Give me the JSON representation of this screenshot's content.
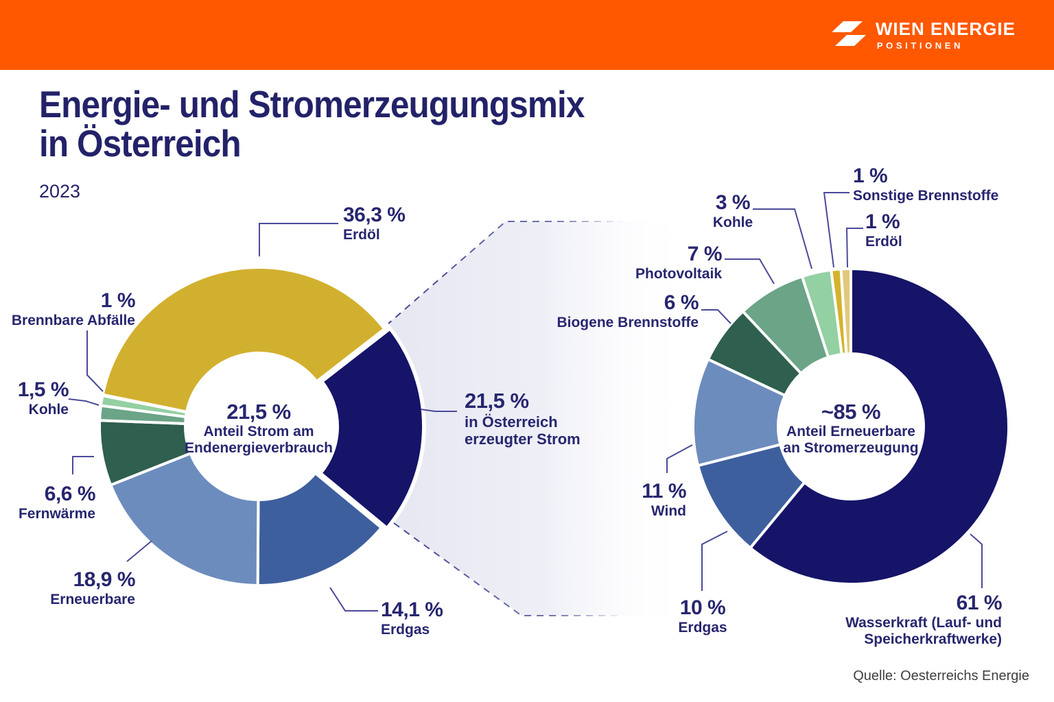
{
  "header": {
    "logo": {
      "icon": "wien-energie-flash-icon",
      "title": "WIEN ENERGIE",
      "subtitle": "POSITIONEN"
    },
    "background_color": "#FF5800"
  },
  "title": {
    "line1": "Energie- und Stromerzeugungsmix",
    "line2": "in Österreich",
    "year": "2023"
  },
  "source": "Quelle: Oesterreichs Energie",
  "colors": {
    "accent_orange": "#FF5800",
    "text_navy": "#27266F",
    "line": "#4B4999",
    "dash": "#3D3B8C",
    "funnel_fill": "#E6E7F1",
    "slice_navy": "#151468",
    "slice_gold": "#D2B02F",
    "slice_tan": "#E2C87D",
    "slice_blue_medium": "#3E5F9E",
    "slice_blue_light": "#6D8CBE",
    "slice_green_dark": "#2F5F4E",
    "slice_green_sage": "#6BA487",
    "slice_green_light": "#93D0A2"
  },
  "flow_label": {
    "value_label": "21,5 %",
    "lines": [
      "in Österreich",
      "erzeugter Strom"
    ]
  },
  "chart_data": [
    {
      "type": "pie",
      "variant": "donut",
      "unit": "%",
      "center_label": {
        "value": "21,5 %",
        "lines": [
          "Anteil Strom am",
          "Endenergieverbrauch"
        ]
      },
      "segments": [
        {
          "id": "erdoel",
          "label": "Erdöl",
          "value": 36.3,
          "value_label": "36,3 %",
          "color": "#D2B02F"
        },
        {
          "id": "strom",
          "label": "in Österreich erzeugter Strom",
          "value": 21.5,
          "value_label": "21,5 %",
          "color": "#151468",
          "exploded": true
        },
        {
          "id": "erdgas",
          "label": "Erdgas",
          "value": 14.1,
          "value_label": "14,1 %",
          "color": "#3E5F9E"
        },
        {
          "id": "erneuerbare",
          "label": "Erneuerbare",
          "value": 18.9,
          "value_label": "18,9 %",
          "color": "#6D8CBE"
        },
        {
          "id": "fernwaerme",
          "label": "Fernwärme",
          "value": 6.6,
          "value_label": "6,6 %",
          "color": "#2F5F4E"
        },
        {
          "id": "kohle",
          "label": "Kohle",
          "value": 1.5,
          "value_label": "1,5 %",
          "color": "#6BA487"
        },
        {
          "id": "abfaelle",
          "label": "Brennbare Abfälle",
          "value": 1.0,
          "value_label": "1 %",
          "color": "#93D0A2"
        }
      ]
    },
    {
      "type": "pie",
      "variant": "donut",
      "unit": "%",
      "center_label": {
        "value": "~85 %",
        "lines": [
          "Anteil Erneuerbare",
          "an Stromerzeugung"
        ]
      },
      "segments": [
        {
          "id": "wasserkraft",
          "label": "Wasserkraft (Lauf- und Speicherkraftwerke)",
          "value": 61,
          "value_label": "61 %",
          "color": "#151468"
        },
        {
          "id": "erdgas",
          "label": "Erdgas",
          "value": 10,
          "value_label": "10 %",
          "color": "#3E5F9E"
        },
        {
          "id": "wind",
          "label": "Wind",
          "value": 11,
          "value_label": "11 %",
          "color": "#6D8CBE"
        },
        {
          "id": "biogene",
          "label": "Biogene Brennstoffe",
          "value": 6,
          "value_label": "6 %",
          "color": "#2F5F4E"
        },
        {
          "id": "photovoltaik",
          "label": "Photovoltaik",
          "value": 7,
          "value_label": "7 %",
          "color": "#6BA487"
        },
        {
          "id": "kohle",
          "label": "Kohle",
          "value": 3,
          "value_label": "3 %",
          "color": "#93D0A2"
        },
        {
          "id": "sonstige",
          "label": "Sonstige Brennstoffe",
          "value": 1,
          "value_label": "1 %",
          "color": "#D4B32C"
        },
        {
          "id": "erdoel",
          "label": "Erdöl",
          "value": 1,
          "value_label": "1 %",
          "color": "#E2C87D"
        }
      ]
    }
  ]
}
